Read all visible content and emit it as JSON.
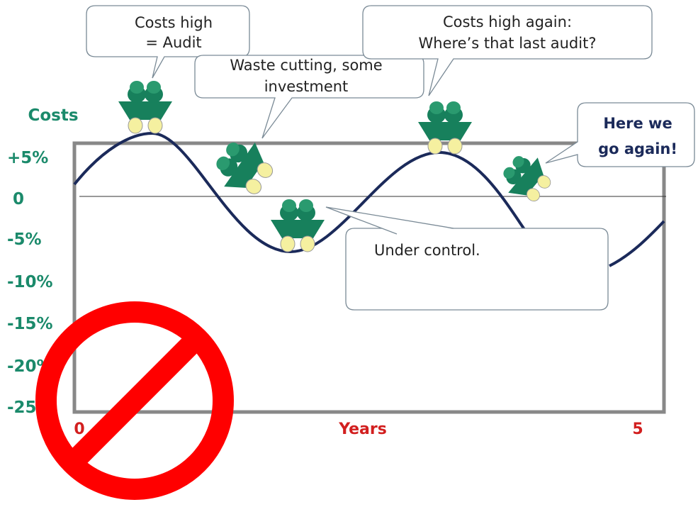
{
  "axis": {
    "title": "Costs",
    "ticks": [
      "+5%",
      "0",
      "-5%",
      "-10%",
      "-15%",
      "-20%",
      "-25%"
    ],
    "x_start": "0",
    "x_title": "Years",
    "x_end": "5"
  },
  "callouts": [
    {
      "lines": [
        "Costs high",
        "= Audit"
      ]
    },
    {
      "lines": [
        "Waste cutting, some",
        "investment"
      ]
    },
    {
      "lines": [
        "Costs high again:",
        "Where’s that last audit?"
      ]
    },
    {
      "lines": [
        "Here we",
        "go again!"
      ]
    },
    {
      "lines": [
        "Under control."
      ]
    }
  ]
}
